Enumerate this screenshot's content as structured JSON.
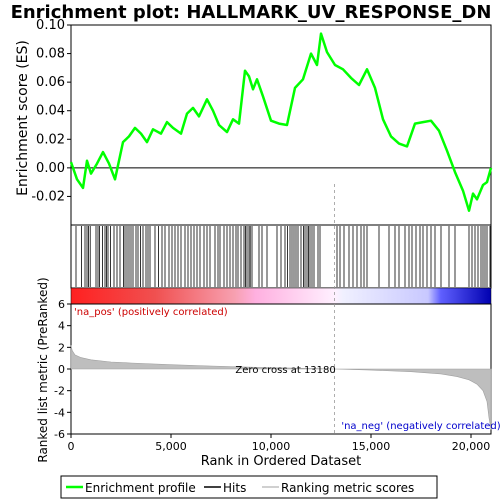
{
  "chart_data": {
    "type": "line",
    "title": "Enrichment plot: HALLMARK_UV_RESPONSE_DN",
    "colors": {
      "es_line": "#00ff00",
      "hits": "#000000",
      "metric_fill": "#bebebe",
      "pos_label": "#cc0000",
      "neg_label": "#0000cc",
      "zero_line": "#000000"
    },
    "es_panel": {
      "ylabel": "Enrichment score (ES)",
      "ylim": [
        -0.04,
        0.1
      ],
      "yticks": [
        "0.10",
        "0.08",
        "0.06",
        "0.04",
        "0.02",
        "0.00",
        "-0.02"
      ],
      "ytick_values": [
        0.1,
        0.08,
        0.06,
        0.04,
        0.02,
        0.0,
        -0.02
      ],
      "series_name": "Enrichment profile",
      "x": [
        0,
        300,
        600,
        800,
        1000,
        1300,
        1600,
        1900,
        2200,
        2600,
        2900,
        3200,
        3500,
        3800,
        4100,
        4500,
        4800,
        5100,
        5500,
        5800,
        6100,
        6400,
        6800,
        7100,
        7400,
        7800,
        8100,
        8400,
        8700,
        8900,
        9100,
        9300,
        9600,
        10000,
        10400,
        10800,
        11200,
        11600,
        12000,
        12300,
        12500,
        12800,
        13200,
        13600,
        14000,
        14400,
        14800,
        15200,
        15600,
        16000,
        16400,
        16800,
        17200,
        17600,
        18000,
        18400,
        18800,
        19200,
        19600,
        19900,
        20100,
        20300,
        20600,
        20800,
        21000
      ],
      "es": [
        0.004,
        -0.008,
        -0.014,
        0.005,
        -0.004,
        0.003,
        0.011,
        0.003,
        -0.008,
        0.018,
        0.022,
        0.028,
        0.024,
        0.018,
        0.027,
        0.024,
        0.032,
        0.028,
        0.024,
        0.038,
        0.042,
        0.036,
        0.048,
        0.04,
        0.03,
        0.025,
        0.034,
        0.031,
        0.068,
        0.064,
        0.055,
        0.062,
        0.05,
        0.033,
        0.031,
        0.03,
        0.056,
        0.062,
        0.08,
        0.072,
        0.094,
        0.081,
        0.072,
        0.069,
        0.063,
        0.058,
        0.069,
        0.056,
        0.034,
        0.022,
        0.017,
        0.015,
        0.031,
        0.032,
        0.033,
        0.026,
        0.012,
        -0.003,
        -0.016,
        -0.03,
        -0.018,
        -0.022,
        -0.012,
        -0.01,
        0.0
      ]
    },
    "hits_panel": {
      "series_name": "Hits",
      "hit_ranks": [
        250,
        520,
        700,
        800,
        880,
        960,
        1250,
        1350,
        1430,
        1580,
        1700,
        1780,
        1850,
        1980,
        2150,
        2300,
        2450,
        2620,
        2700,
        2800,
        2900,
        3000,
        3100,
        3250,
        3350,
        3480,
        3600,
        3750,
        3850,
        3950,
        4200,
        4380,
        4550,
        4700,
        4900,
        5050,
        5200,
        5350,
        5500,
        5700,
        5850,
        6000,
        6150,
        6300,
        6450,
        6650,
        6800,
        6950,
        7200,
        7350,
        7450,
        7650,
        7800,
        7950,
        8100,
        8250,
        8350,
        8500,
        8650,
        8720,
        8800,
        8900,
        8960,
        9050,
        9400,
        9550,
        9800,
        10300,
        10500,
        10700,
        10820,
        10950,
        11050,
        11150,
        11250,
        11350,
        11500,
        11620,
        11700,
        11800,
        11880,
        11950,
        12050,
        12150,
        12350,
        12450,
        13300,
        13450,
        13650,
        13900,
        14100,
        14300,
        14500,
        14650,
        14800,
        15400,
        15900,
        16200,
        16400,
        16700,
        16900,
        17050,
        17250,
        17450,
        17600,
        17800,
        18000,
        18200,
        18500,
        18900,
        19200,
        19900,
        20050,
        20200,
        20350,
        20500,
        20600,
        20700,
        20800,
        20950
      ]
    },
    "metric_panel": {
      "ylabel": "Ranked list metric (PreRanked)",
      "xlabel": "Rank in Ordered Dataset",
      "ylim": [
        -6,
        6
      ],
      "yticks": [
        "6",
        "4",
        "2",
        "0",
        "-2",
        "-4",
        "-6"
      ],
      "ytick_values": [
        6,
        4,
        2,
        0,
        -2,
        -4,
        -6
      ],
      "xlim": [
        0,
        21000
      ],
      "xticks": [
        "0",
        "5,000",
        "10,000",
        "15,000",
        "20,000"
      ],
      "xtick_values": [
        0,
        5000,
        10000,
        15000,
        20000
      ],
      "series_name": "Ranking metric scores",
      "x": [
        0,
        60,
        200,
        500,
        1000,
        2000,
        3000,
        5000,
        7000,
        9000,
        11000,
        13180,
        15000,
        17000,
        18500,
        19300,
        19900,
        20300,
        20600,
        20800,
        20900,
        21000
      ],
      "y": [
        2.2,
        1.7,
        1.3,
        1.05,
        0.85,
        0.65,
        0.55,
        0.4,
        0.28,
        0.17,
        0.08,
        0.0,
        -0.1,
        -0.25,
        -0.45,
        -0.7,
        -1.0,
        -1.4,
        -2.0,
        -3.0,
        -4.5,
        -5.6
      ],
      "zero_cross_label": "Zero cross at 13180",
      "zero_cross_rank": 13180,
      "pos_label": "'na_pos' (positively correlated)",
      "neg_label": "'na_neg' (negatively correlated)"
    },
    "legend": {
      "placement": "bottom",
      "entries": [
        "Enrichment profile",
        "Hits",
        "Ranking metric scores"
      ]
    }
  }
}
